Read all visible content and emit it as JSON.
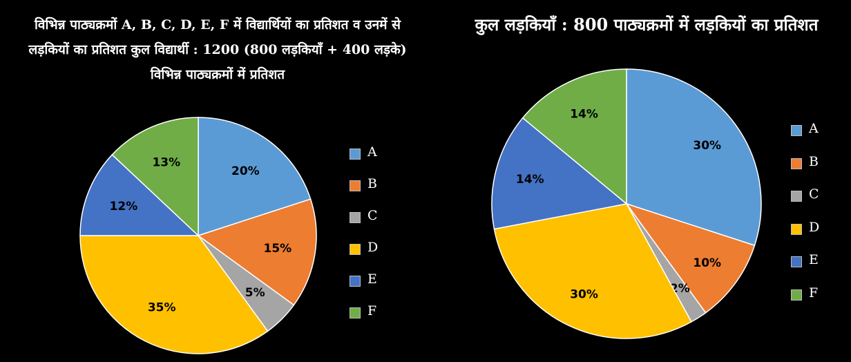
{
  "left": {
    "title_lines": [
      "विभिन्न पाठ्यक्रमों A, B, C, D, E, F में विद्यार्थियों का प्रतिशत व उनमें से",
      "लड़कियों का प्रतिशत कुल विद्यार्थी : 1200 (800 लड़कियाँ + 400 लड़के)",
      "विभिन्न पाठ्यक्रमों में प्रतिशत"
    ]
  },
  "right": {
    "title": "कुल लड़कियाँ : 800 पाठ्यक्रमों में लड़कियों का प्रतिशत"
  },
  "colors": {
    "A": "#5b9bd5",
    "B": "#ed7d31",
    "C": "#a5a5a5",
    "D": "#ffc000",
    "E": "#4472c4",
    "F": "#70ad47"
  },
  "chart_data": [
    {
      "type": "pie",
      "title": "विभिन्न पाठ्यक्रमों में प्रतिशत",
      "categories": [
        "A",
        "B",
        "C",
        "D",
        "E",
        "F"
      ],
      "values": [
        20,
        15,
        5,
        35,
        12,
        13
      ],
      "labels": [
        "20%",
        "15%",
        "5%",
        "35%",
        "12%",
        "13%"
      ],
      "legend_entries": [
        "A",
        "B",
        "C",
        "D",
        "E",
        "F"
      ],
      "legend_position": "right"
    },
    {
      "type": "pie",
      "title": "कुल लड़कियाँ : 800 पाठ्यक्रमों में लड़कियों का प्रतिशत",
      "categories": [
        "A",
        "B",
        "C",
        "D",
        "E",
        "F"
      ],
      "values": [
        30,
        10,
        2,
        30,
        14,
        14
      ],
      "labels": [
        "30%",
        "10%",
        "2%",
        "30%",
        "14%",
        "14%"
      ],
      "legend_entries": [
        "A",
        "B",
        "C",
        "D",
        "E",
        "F"
      ],
      "legend_position": "right"
    }
  ]
}
